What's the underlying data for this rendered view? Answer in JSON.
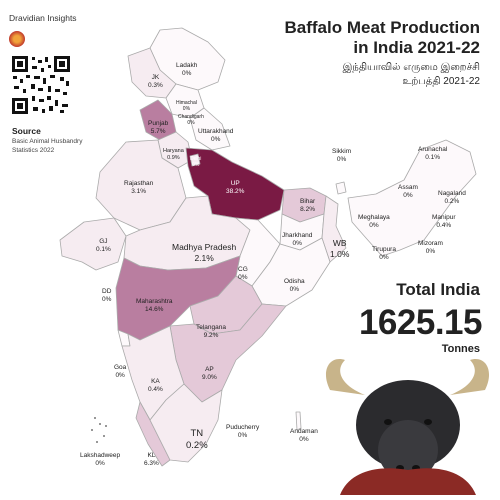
{
  "brand": {
    "name": "Dravidian Insights",
    "logo_icon": "dravidian-insights-logo"
  },
  "source": {
    "heading": "Source",
    "text": "Basic Animal Husbandry Statistics 2022"
  },
  "title": {
    "line1": "Baffalo Meat Production",
    "line2": "in India 2021-22"
  },
  "subtitle": {
    "line1": "இந்தியாவில் எருமை இறைச்சி",
    "line2": "உற்பத்தி 2021-22"
  },
  "total": {
    "label": "Total India",
    "value": "1625.15",
    "unit": "Tonnes"
  },
  "colors": {
    "max": "#7a1a44",
    "high": "#b97ea0",
    "mid": "#e4c9d8",
    "low": "#f6ecf1",
    "zero": "#fdf9fb",
    "border": "#aaaaaa"
  },
  "states": [
    {
      "name": "Ladakh",
      "value": "0%"
    },
    {
      "name": "JK",
      "value": "0.3%"
    },
    {
      "name": "Himachal",
      "value": "0%"
    },
    {
      "name": "Chandigarh",
      "value": "0%"
    },
    {
      "name": "Punjab",
      "value": "5.7%"
    },
    {
      "name": "Uttarakhand",
      "value": "0%"
    },
    {
      "name": "Haryana",
      "value": "0.9%"
    },
    {
      "name": "Delhi",
      "value": "0%"
    },
    {
      "name": "Rajasthan",
      "value": "3.1%"
    },
    {
      "name": "UP",
      "value": "38.2%"
    },
    {
      "name": "Bihar",
      "value": "8.2%"
    },
    {
      "name": "Sikkim",
      "value": "0%"
    },
    {
      "name": "Arunachal",
      "value": "0.1%"
    },
    {
      "name": "Assam",
      "value": "0%"
    },
    {
      "name": "Nagaland",
      "value": "0.2%"
    },
    {
      "name": "Meghalaya",
      "value": "0%"
    },
    {
      "name": "Manipur",
      "value": "0.4%"
    },
    {
      "name": "Tirupura",
      "value": "0%"
    },
    {
      "name": "Mizoram",
      "value": "0%"
    },
    {
      "name": "GJ",
      "value": "0.1%"
    },
    {
      "name": "Madhya Pradesh",
      "value": "2.1%"
    },
    {
      "name": "Jharkhand",
      "value": "0%"
    },
    {
      "name": "WB",
      "value": "1.0%"
    },
    {
      "name": "DD",
      "value": "0%"
    },
    {
      "name": "CG",
      "value": "0%"
    },
    {
      "name": "Odisha",
      "value": "0%"
    },
    {
      "name": "Maharashtra",
      "value": "14.6%"
    },
    {
      "name": "Telangana",
      "value": "9.2%"
    },
    {
      "name": "Goa",
      "value": "0%"
    },
    {
      "name": "AP",
      "value": "9.0%"
    },
    {
      "name": "KA",
      "value": "0.4%"
    },
    {
      "name": "TN",
      "value": "0.2%"
    },
    {
      "name": "Puducherry",
      "value": "0%"
    },
    {
      "name": "Andaman",
      "value": "0%"
    },
    {
      "name": "Lakshadweep",
      "value": "0%"
    },
    {
      "name": "KL",
      "value": "6.3%"
    }
  ]
}
